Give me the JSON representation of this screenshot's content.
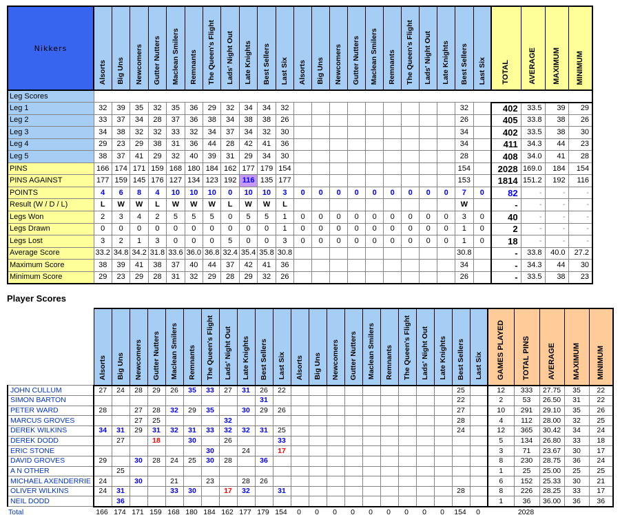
{
  "title": {
    "team_name": "Nikkers",
    "player_section": "Player Scores"
  },
  "teams": [
    "Alsorts",
    "Big Uns",
    "Newcomers",
    "Gutter Nutters",
    "Maclean Smilers",
    "Remnants",
    "The Queen's Flight",
    "Lads' Night Out",
    "Late Knights",
    "Best Sellers",
    "Last Six"
  ],
  "colors": {
    "team_cell_blue": "#3865EF",
    "team_cell_text": "#FFFF99",
    "header_blue": "#A6CEF4",
    "summary_yellow": "#FFFF99",
    "summary_orange": "#FFCC99",
    "highlight_purple": "#C599F5",
    "score_high_blue": "#0000FF",
    "score_low_red": "#FF0000",
    "player_name_blue": "#0033CC"
  },
  "score_rules": {
    "blue_min": 30,
    "red_max": 20
  },
  "top_table": {
    "section_label": "Leg Scores",
    "summary_headers": [
      "TOTAL",
      "AVERAGE",
      "MAXIMUM",
      "MINIMUM"
    ],
    "rows": [
      {
        "label": "Leg 1",
        "bg": "blue",
        "cells": [
          "32",
          "39",
          "35",
          "32",
          "35",
          "36",
          "29",
          "32",
          "34",
          "34",
          "32",
          "",
          "",
          "",
          "",
          "",
          "",
          "",
          "",
          "",
          "32",
          ""
        ],
        "summary": [
          "402",
          "33.5",
          "39",
          "29"
        ]
      },
      {
        "label": "Leg 2",
        "bg": "blue",
        "cells": [
          "33",
          "37",
          "34",
          "28",
          "37",
          "36",
          "38",
          "34",
          "38",
          "38",
          "26",
          "",
          "",
          "",
          "",
          "",
          "",
          "",
          "",
          "",
          "26",
          ""
        ],
        "summary": [
          "405",
          "33.8",
          "38",
          "26"
        ]
      },
      {
        "label": "Leg 3",
        "bg": "blue",
        "cells": [
          "34",
          "38",
          "32",
          "32",
          "33",
          "32",
          "34",
          "37",
          "34",
          "32",
          "30",
          "",
          "",
          "",
          "",
          "",
          "",
          "",
          "",
          "",
          "34",
          ""
        ],
        "summary": [
          "402",
          "33.5",
          "38",
          "30"
        ]
      },
      {
        "label": "Leg 4",
        "bg": "blue",
        "cells": [
          "29",
          "23",
          "29",
          "38",
          "31",
          "36",
          "44",
          "28",
          "42",
          "41",
          "36",
          "",
          "",
          "",
          "",
          "",
          "",
          "",
          "",
          "",
          "34",
          ""
        ],
        "summary": [
          "411",
          "34.3",
          "44",
          "23"
        ]
      },
      {
        "label": "Leg 5",
        "bg": "blue",
        "cells": [
          "38",
          "37",
          "41",
          "29",
          "32",
          "40",
          "39",
          "31",
          "29",
          "34",
          "30",
          "",
          "",
          "",
          "",
          "",
          "",
          "",
          "",
          "",
          "28",
          ""
        ],
        "summary": [
          "408",
          "34.0",
          "41",
          "28"
        ]
      },
      {
        "label": "PINS",
        "bg": "yellow",
        "cells": [
          "166",
          "174",
          "171",
          "159",
          "168",
          "180",
          "184",
          "162",
          "177",
          "179",
          "154",
          "",
          "",
          "",
          "",
          "",
          "",
          "",
          "",
          "",
          "154",
          ""
        ],
        "summary": [
          "2028",
          "169.0",
          "184",
          "154"
        ]
      },
      {
        "label": "PINS AGAINST",
        "bg": "yellow",
        "highlight_col": 8,
        "cells": [
          "177",
          "159",
          "145",
          "176",
          "127",
          "134",
          "123",
          "192",
          "116",
          "135",
          "177",
          "",
          "",
          "",
          "",
          "",
          "",
          "",
          "",
          "",
          "153",
          ""
        ],
        "summary": [
          "1814",
          "151.2",
          "192",
          "116"
        ]
      },
      {
        "label": "POINTS",
        "bg": "yellow",
        "cls": "pts",
        "cells": [
          "4",
          "6",
          "8",
          "4",
          "10",
          "10",
          "10",
          "0",
          "10",
          "10",
          "3",
          "0",
          "0",
          "0",
          "0",
          "0",
          "0",
          "0",
          "0",
          "0",
          "7",
          "0"
        ],
        "summary": [
          "82",
          "-",
          "-",
          "-"
        ]
      },
      {
        "label": "Result (W / D / L)",
        "bg": "yellow",
        "cls": "res",
        "cells": [
          "L",
          "W",
          "W",
          "L",
          "W",
          "W",
          "W",
          "L",
          "W",
          "W",
          "L",
          "",
          "",
          "",
          "",
          "",
          "",
          "",
          "",
          "",
          "W",
          ""
        ],
        "summary": [
          "-",
          "-",
          "-",
          "-"
        ]
      },
      {
        "label": "Legs Won",
        "bg": "yellow",
        "cells": [
          "2",
          "3",
          "4",
          "2",
          "5",
          "5",
          "5",
          "0",
          "5",
          "5",
          "1",
          "0",
          "0",
          "0",
          "0",
          "0",
          "0",
          "0",
          "0",
          "0",
          "3",
          "0"
        ],
        "summary": [
          "40",
          "-",
          "-",
          "-"
        ]
      },
      {
        "label": "Legs Drawn",
        "bg": "yellow",
        "cells": [
          "0",
          "0",
          "0",
          "0",
          "0",
          "0",
          "0",
          "0",
          "0",
          "0",
          "1",
          "0",
          "0",
          "0",
          "0",
          "0",
          "0",
          "0",
          "0",
          "0",
          "1",
          "0"
        ],
        "summary": [
          "2",
          "-",
          "-",
          "-"
        ]
      },
      {
        "label": "Legs Lost",
        "bg": "yellow",
        "cells": [
          "3",
          "2",
          "1",
          "3",
          "0",
          "0",
          "0",
          "5",
          "0",
          "0",
          "3",
          "0",
          "0",
          "0",
          "0",
          "0",
          "0",
          "0",
          "0",
          "0",
          "1",
          "0"
        ],
        "summary": [
          "18",
          "-",
          "-",
          "-"
        ]
      },
      {
        "label": "Average Score",
        "bg": "yellow",
        "cells": [
          "33.2",
          "34.8",
          "34.2",
          "31.8",
          "33.6",
          "36.0",
          "36.8",
          "32.4",
          "35.4",
          "35.8",
          "30.8",
          "",
          "",
          "",
          "",
          "",
          "",
          "",
          "",
          "",
          "30.8",
          ""
        ],
        "summary": [
          "-",
          "33.8",
          "40.0",
          "27.2"
        ]
      },
      {
        "label": "Maximum Score",
        "bg": "yellow",
        "cells": [
          "38",
          "39",
          "41",
          "38",
          "37",
          "40",
          "44",
          "37",
          "42",
          "41",
          "36",
          "",
          "",
          "",
          "",
          "",
          "",
          "",
          "",
          "",
          "34",
          ""
        ],
        "summary": [
          "-",
          "34.3",
          "44",
          "30"
        ]
      },
      {
        "label": "Minimum Score",
        "bg": "yellow",
        "cells": [
          "29",
          "23",
          "29",
          "28",
          "31",
          "32",
          "29",
          "28",
          "29",
          "32",
          "26",
          "",
          "",
          "",
          "",
          "",
          "",
          "",
          "",
          "",
          "26",
          ""
        ],
        "summary": [
          "-",
          "33.5",
          "38",
          "23"
        ]
      }
    ]
  },
  "player_table": {
    "title": "Player Scores",
    "summary_headers": [
      "GAMES PLAYED",
      "TOTAL PINS",
      "AVERAGE",
      "MAXIMUM",
      "MINIMUM"
    ],
    "rows": [
      {
        "name": "JOHN CULLUM",
        "cells": [
          "27",
          "24",
          "28",
          "29",
          "26",
          "35",
          "33",
          "27",
          "31",
          "26",
          "22",
          "",
          "",
          "",
          "",
          "",
          "",
          "",
          "",
          "",
          "25",
          ""
        ],
        "summary": [
          "12",
          "333",
          "27.75",
          "35",
          "22"
        ]
      },
      {
        "name": "SIMON BARTON",
        "cells": [
          "",
          "",
          "",
          "",
          "",
          "",
          "",
          "",
          "",
          "31",
          "",
          "",
          "",
          "",
          "",
          "",
          "",
          "",
          "",
          "",
          "22",
          ""
        ],
        "summary": [
          "2",
          "53",
          "26.50",
          "31",
          "22"
        ]
      },
      {
        "name": "PETER WARD",
        "cells": [
          "28",
          "",
          "27",
          "28",
          "32",
          "29",
          "35",
          "",
          "30",
          "29",
          "26",
          "",
          "",
          "",
          "",
          "",
          "",
          "",
          "",
          "",
          "27",
          ""
        ],
        "summary": [
          "10",
          "291",
          "29.10",
          "35",
          "26"
        ]
      },
      {
        "name": "MARCUS GROVES",
        "cells": [
          "",
          "",
          "27",
          "25",
          "",
          "",
          "",
          "32",
          "",
          "",
          "",
          "",
          "",
          "",
          "",
          "",
          "",
          "",
          "",
          "",
          "28",
          ""
        ],
        "summary": [
          "4",
          "112",
          "28.00",
          "32",
          "25"
        ]
      },
      {
        "name": "DEREK WILKINS",
        "cells": [
          "34",
          "31",
          "29",
          "31",
          "32",
          "31",
          "33",
          "32",
          "32",
          "31",
          "25",
          "",
          "",
          "",
          "",
          "",
          "",
          "",
          "",
          "",
          "24",
          ""
        ],
        "summary": [
          "12",
          "365",
          "30.42",
          "34",
          "24"
        ]
      },
      {
        "name": "DEREK DODD",
        "cells": [
          "",
          "27",
          "",
          "18",
          "",
          "30",
          "",
          "26",
          "",
          "",
          "33",
          "",
          "",
          "",
          "",
          "",
          "",
          "",
          "",
          "",
          "",
          ""
        ],
        "summary": [
          "5",
          "134",
          "26.80",
          "33",
          "18"
        ]
      },
      {
        "name": "ERIC STONE",
        "cells": [
          "",
          "",
          "",
          "",
          "",
          "",
          "30",
          "",
          "24",
          "",
          "17",
          "",
          "",
          "",
          "",
          "",
          "",
          "",
          "",
          "",
          "",
          ""
        ],
        "summary": [
          "3",
          "71",
          "23.67",
          "30",
          "17"
        ]
      },
      {
        "name": "DAVID GROVES",
        "cells": [
          "29",
          "",
          "30",
          "28",
          "24",
          "25",
          "30",
          "28",
          "",
          "36",
          "",
          "",
          "",
          "",
          "",
          "",
          "",
          "",
          "",
          "",
          "",
          ""
        ],
        "summary": [
          "8",
          "230",
          "28.75",
          "36",
          "24"
        ]
      },
      {
        "name": "A N OTHER",
        "cells": [
          "",
          "25",
          "",
          "",
          "",
          "",
          "",
          "",
          "",
          "",
          "",
          "",
          "",
          "",
          "",
          "",
          "",
          "",
          "",
          "",
          "",
          ""
        ],
        "summary": [
          "1",
          "25",
          "25.00",
          "25",
          "25"
        ]
      },
      {
        "name": "MICHAEL AXENDERRIE",
        "cells": [
          "24",
          "",
          "30",
          "",
          "21",
          "",
          "23",
          "",
          "28",
          "26",
          "",
          "",
          "",
          "",
          "",
          "",
          "",
          "",
          "",
          "",
          "",
          ""
        ],
        "summary": [
          "6",
          "152",
          "25.33",
          "30",
          "21"
        ]
      },
      {
        "name": "OLIVER WILKINS",
        "cells": [
          "24",
          "31",
          "",
          "",
          "33",
          "30",
          "",
          "17",
          "32",
          "",
          "31",
          "",
          "",
          "",
          "",
          "",
          "",
          "",
          "",
          "",
          "28",
          ""
        ],
        "summary": [
          "8",
          "226",
          "28.25",
          "33",
          "17"
        ]
      },
      {
        "name": "NEIL DODD",
        "cells": [
          "",
          "36",
          "",
          "",
          "",
          "",
          "",
          "",
          "",
          "",
          "",
          "",
          "",
          "",
          "",
          "",
          "",
          "",
          "",
          "",
          "",
          ""
        ],
        "summary": [
          "1",
          "36",
          "36.00",
          "36",
          "36"
        ]
      }
    ],
    "total_row": {
      "label": "Total",
      "cells": [
        "166",
        "174",
        "171",
        "159",
        "168",
        "180",
        "184",
        "162",
        "177",
        "179",
        "154",
        "0",
        "0",
        "0",
        "0",
        "0",
        "0",
        "0",
        "0",
        "0",
        "154",
        "0"
      ],
      "summary": [
        "",
        "2028",
        "",
        "",
        ""
      ]
    }
  }
}
